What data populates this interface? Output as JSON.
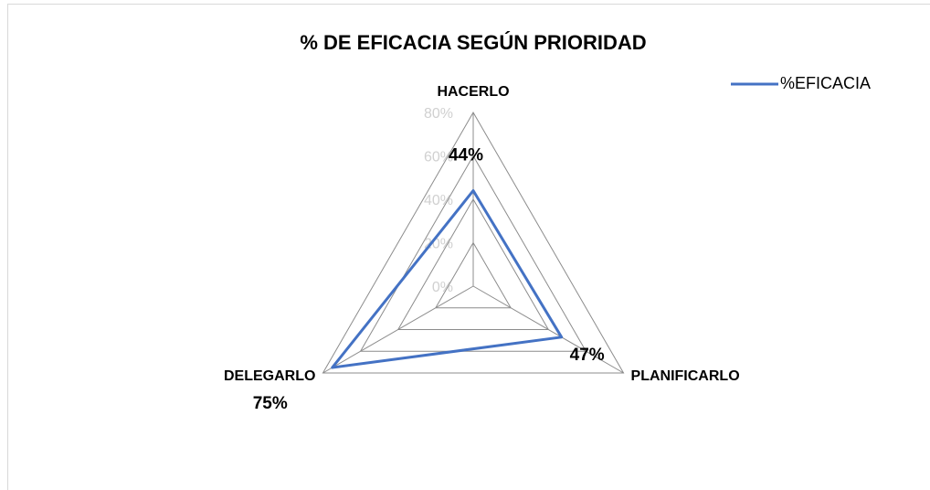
{
  "chart_data": {
    "type": "radar",
    "title": "% DE EFICACIA SEGÚN PRIORIDAD",
    "categories": [
      "HACERLO",
      "PLANIFICARLO",
      "DELEGARLO"
    ],
    "series": [
      {
        "name": "%EFICACIA",
        "color": "#4472c4",
        "values": [
          44,
          47,
          75
        ],
        "value_labels": [
          "44%",
          "47%",
          "75%"
        ]
      }
    ],
    "ylim": [
      0,
      80
    ],
    "yticks": [
      {
        "value": 0,
        "label": "0%"
      },
      {
        "value": 20,
        "label": "20%"
      },
      {
        "value": 40,
        "label": "40%"
      },
      {
        "value": 60,
        "label": "60%"
      },
      {
        "value": 80,
        "label": "80%"
      }
    ],
    "grid": true,
    "legend": "top-right"
  }
}
